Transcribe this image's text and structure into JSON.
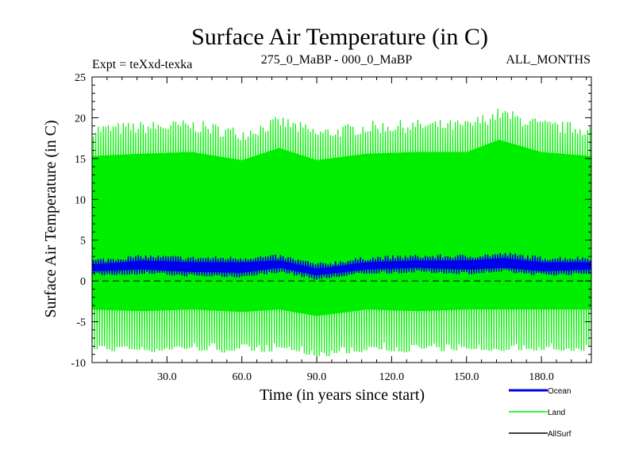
{
  "chart_data": {
    "type": "line",
    "title": "Surface Air Temperature (in C)",
    "subtitle_left": "Expt = teXxd-texka",
    "subtitle_center": "275_0_MaBP - 000_0_MaBP",
    "subtitle_right": "ALL_MONTHS",
    "xlabel": "Time (in years since start)",
    "ylabel": "Surface Air Temperature (in C)",
    "xlim": [
      0,
      200
    ],
    "ylim": [
      -10,
      25
    ],
    "x_ticks": [
      30,
      60,
      90,
      120,
      150,
      180
    ],
    "x_tick_labels": [
      "30.0",
      "60.0",
      "90.0",
      "120.0",
      "150.0",
      "180.0"
    ],
    "y_ticks": [
      -10,
      -5,
      0,
      5,
      10,
      15,
      20,
      25
    ],
    "y_tick_labels": [
      "-10",
      "-5",
      "0",
      "5",
      "10",
      "15",
      "20",
      "25"
    ],
    "zero_line": 0,
    "series": [
      {
        "name": "Land",
        "color": "#00ee00",
        "sampling": "annual seasonal min/max",
        "annual_max_anchor_years": [
          0,
          20,
          40,
          60,
          75,
          90,
          110,
          130,
          150,
          163,
          180,
          200
        ],
        "annual_max": [
          18.5,
          18.8,
          19.0,
          18.0,
          19.5,
          18.0,
          18.8,
          19.0,
          19.0,
          20.5,
          19.0,
          18.5
        ],
        "annual_min_anchor_years": [
          0,
          20,
          40,
          60,
          75,
          90,
          110,
          130,
          150,
          170,
          200
        ],
        "annual_min": [
          -8.0,
          -8.2,
          -8.0,
          -8.3,
          -8.0,
          -8.8,
          -8.0,
          -8.2,
          -8.0,
          -8.0,
          -8.0
        ]
      },
      {
        "name": "Ocean",
        "color": "#0000ee",
        "sampling": "annual seasonal min/max",
        "anchor_years": [
          0,
          20,
          40,
          60,
          75,
          90,
          110,
          130,
          150,
          165,
          180,
          200
        ],
        "annual_max": [
          2.5,
          3.0,
          2.8,
          2.8,
          3.0,
          2.0,
          2.8,
          3.0,
          3.0,
          3.3,
          2.8,
          2.8
        ],
        "annual_min": [
          0.8,
          1.0,
          0.7,
          0.6,
          1.2,
          0.3,
          1.0,
          1.2,
          1.0,
          1.2,
          0.8,
          1.0
        ]
      },
      {
        "name": "AllSurf",
        "color": "#000000"
      }
    ],
    "legend": {
      "placement": "bottom-right",
      "entries": [
        "Ocean",
        "Land",
        "AllSurf"
      ]
    }
  }
}
